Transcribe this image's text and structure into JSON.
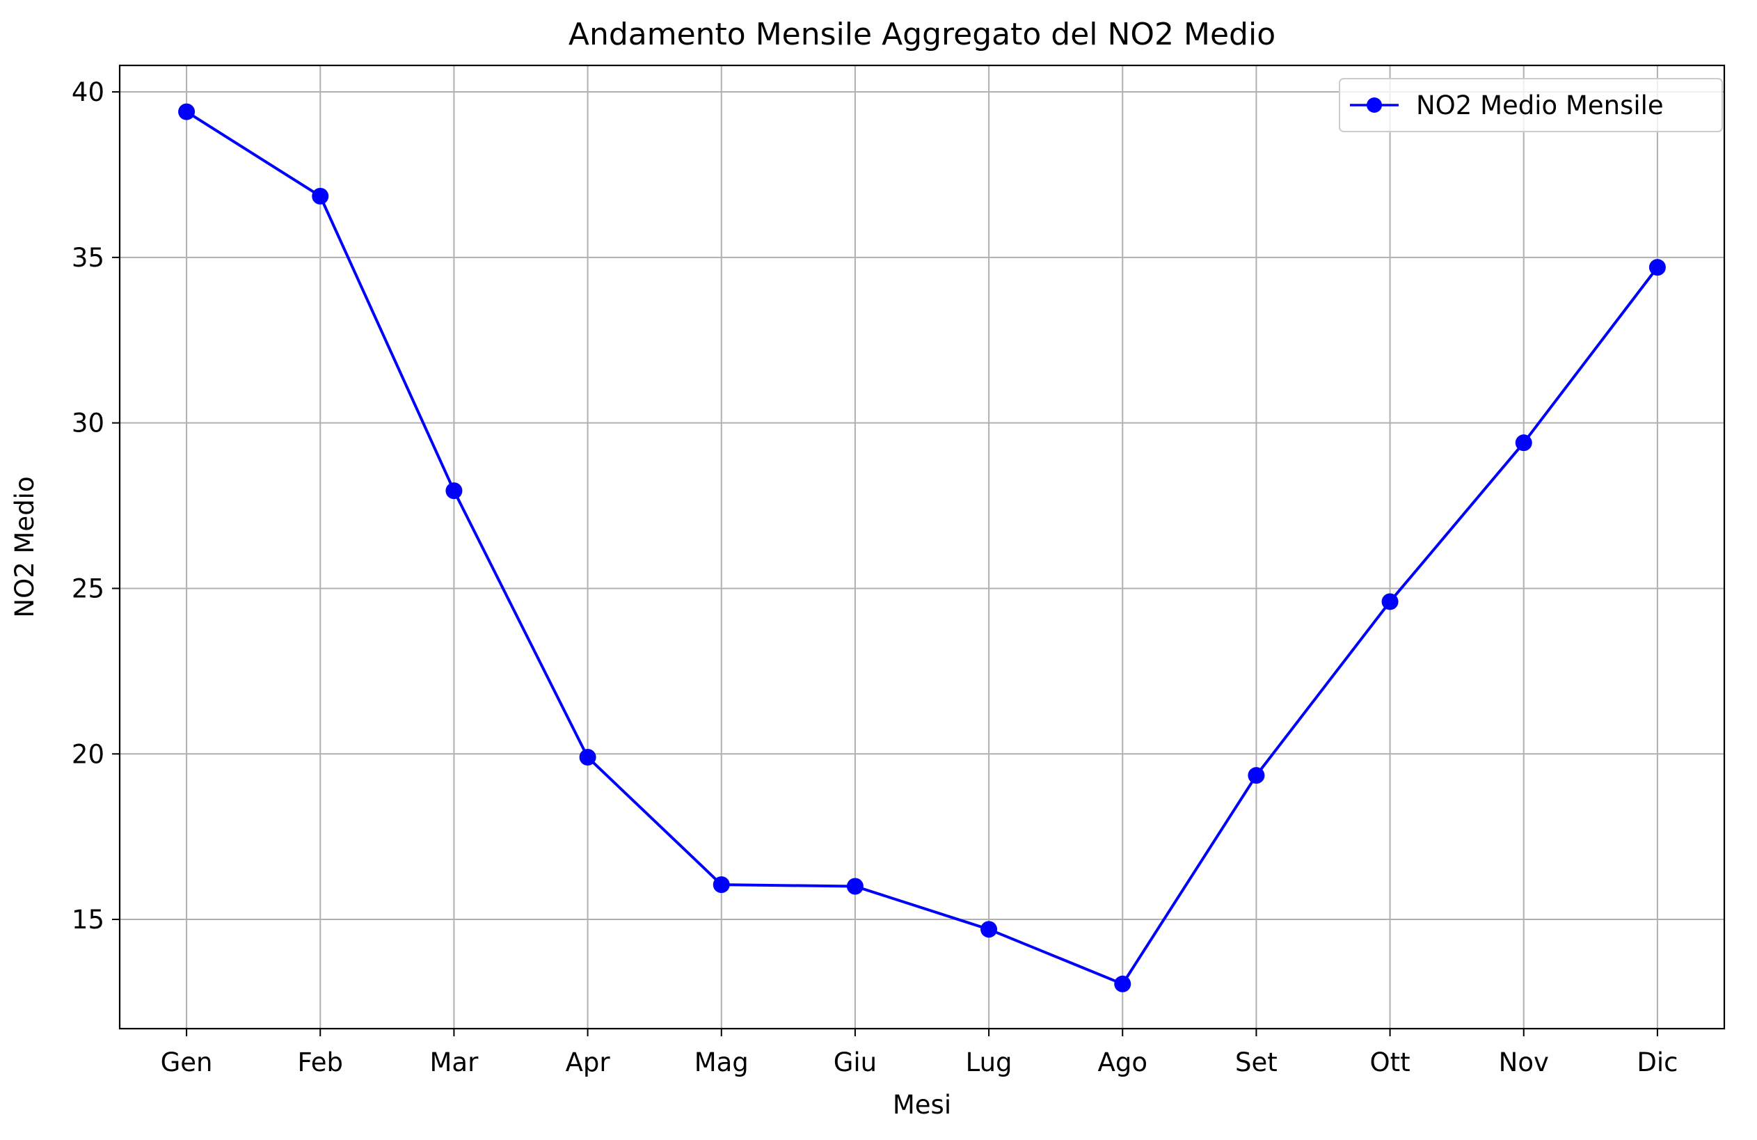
{
  "chart_data": {
    "type": "line",
    "title": "Andamento Mensile Aggregato del NO2 Medio",
    "xlabel": "Mesi",
    "ylabel": "NO2 Medio",
    "categories": [
      "Gen",
      "Feb",
      "Mar",
      "Apr",
      "Mag",
      "Giu",
      "Lug",
      "Ago",
      "Set",
      "Ott",
      "Nov",
      "Dic"
    ],
    "series": [
      {
        "name": "NO2 Medio Mensile",
        "color": "#0000ff",
        "marker": "circle",
        "values": [
          39.4,
          36.85,
          27.95,
          19.9,
          16.05,
          16.0,
          14.7,
          13.05,
          19.35,
          24.6,
          29.4,
          34.7
        ]
      }
    ],
    "ylim": [
      11.7,
      40.8
    ],
    "yticks": [
      15,
      20,
      25,
      30,
      35,
      40
    ],
    "grid": true,
    "legend_position": "top-right"
  }
}
